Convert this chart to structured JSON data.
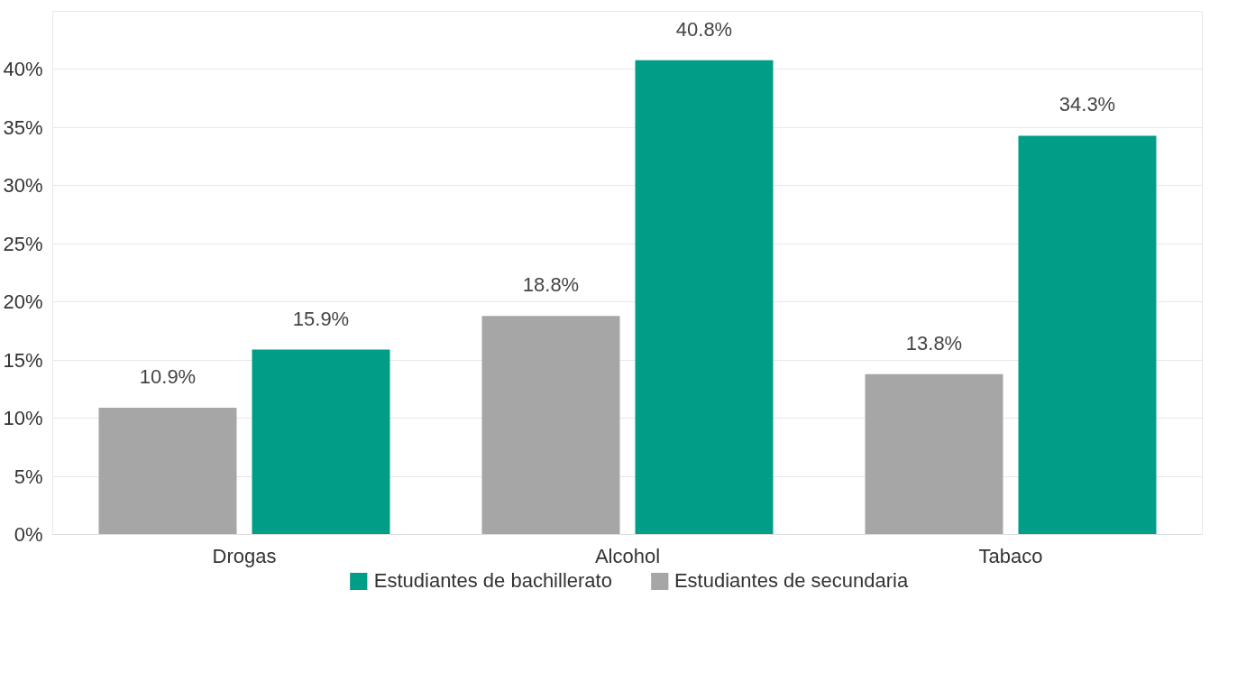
{
  "chart_data": {
    "type": "bar",
    "categories": [
      "Drogas",
      "Alcohol",
      "Tabaco"
    ],
    "series": [
      {
        "name": "Estudiantes de secundaria",
        "color": "#a6a6a6",
        "values": [
          10.9,
          18.8,
          13.8
        ],
        "value_labels": [
          "10.9%",
          "18.8%",
          "13.8%"
        ]
      },
      {
        "name": "Estudiantes de bachillerato",
        "color": "#009e87",
        "values": [
          15.9,
          40.8,
          34.3
        ],
        "value_labels": [
          "15.9%",
          "40.8%",
          "34.3%"
        ]
      }
    ],
    "ylim": [
      0,
      45
    ],
    "yticks": [
      {
        "value": 0,
        "label": "0%"
      },
      {
        "value": 5,
        "label": "5%"
      },
      {
        "value": 10,
        "label": "10%"
      },
      {
        "value": 15,
        "label": "15%"
      },
      {
        "value": 20,
        "label": "20%"
      },
      {
        "value": 25,
        "label": "25%"
      },
      {
        "value": 30,
        "label": "30%"
      },
      {
        "value": 35,
        "label": "35%"
      },
      {
        "value": 40,
        "label": "40%"
      },
      {
        "value": 45,
        "label": null
      }
    ],
    "grid": "y",
    "legend": "bottom"
  }
}
